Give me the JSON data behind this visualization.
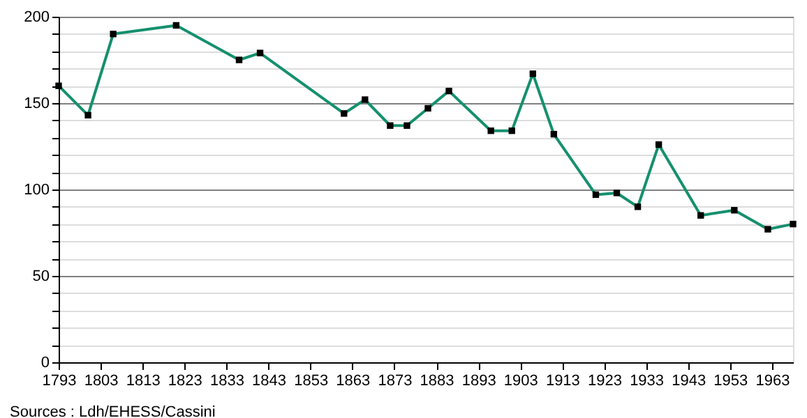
{
  "chart_data": {
    "type": "line",
    "x": [
      1793,
      1800,
      1806,
      1821,
      1836,
      1841,
      1861,
      1866,
      1872,
      1876,
      1881,
      1886,
      1896,
      1901,
      1906,
      1911,
      1921,
      1926,
      1931,
      1936,
      1946,
      1954,
      1962,
      1968
    ],
    "series": [
      {
        "color": "#15906e",
        "values": [
          160,
          143,
          190,
          195,
          175,
          179,
          144,
          152,
          137,
          137,
          147,
          157,
          134,
          134,
          167,
          132,
          97,
          98,
          90,
          126,
          85,
          88,
          77,
          80
        ]
      }
    ],
    "xlim": [
      1793,
      1968
    ],
    "xticks": [
      1793,
      1803,
      1813,
      1823,
      1833,
      1843,
      1853,
      1863,
      1873,
      1883,
      1893,
      1903,
      1913,
      1923,
      1933,
      1943,
      1953,
      1963
    ],
    "ylim": [
      0,
      200
    ],
    "yticks": [
      0,
      {
        "value": 10,
        "label": null
      },
      {
        "value": 20,
        "label": null
      },
      {
        "value": 30,
        "label": null
      },
      {
        "value": 40,
        "label": null
      },
      50,
      {
        "value": 60,
        "label": null
      },
      {
        "value": 70,
        "label": null
      },
      {
        "value": 80,
        "label": null
      },
      {
        "value": 90,
        "label": null
      },
      100,
      {
        "value": 110,
        "label": null
      },
      {
        "value": 120,
        "label": null
      },
      {
        "value": 130,
        "label": null
      },
      {
        "value": 140,
        "label": null
      },
      150,
      {
        "value": 160,
        "label": null
      },
      {
        "value": 170,
        "label": null
      },
      {
        "value": 180,
        "label": null
      },
      {
        "value": 190,
        "label": null
      },
      200
    ],
    "grid": "y",
    "marker": "square",
    "line_style": "solid",
    "annotations": [
      "Sources : Ldh/EHESS/Cassini"
    ]
  }
}
